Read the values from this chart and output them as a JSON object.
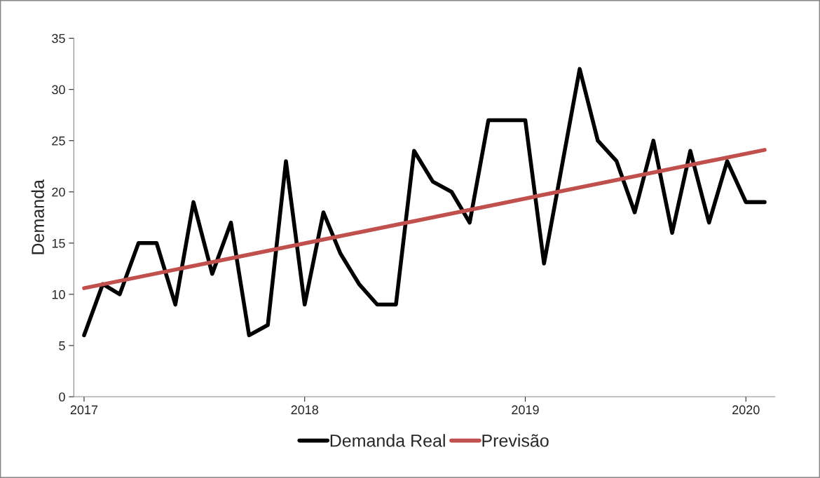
{
  "chart_data": {
    "type": "line",
    "ylabel": "Demanda",
    "x": [
      "2017-01",
      "2017-02",
      "2017-03",
      "2017-04",
      "2017-05",
      "2017-06",
      "2017-07",
      "2017-08",
      "2017-09",
      "2017-10",
      "2017-11",
      "2017-12",
      "2018-01",
      "2018-02",
      "2018-03",
      "2018-04",
      "2018-05",
      "2018-06",
      "2018-07",
      "2018-08",
      "2018-09",
      "2018-10",
      "2018-11",
      "2018-12",
      "2019-01",
      "2019-02",
      "2019-03",
      "2019-04",
      "2019-05",
      "2019-06",
      "2019-07",
      "2019-08",
      "2019-09",
      "2019-10",
      "2019-11",
      "2019-12",
      "2020-01",
      "2020-02"
    ],
    "series": [
      {
        "name": "Demanda Real",
        "color": "#000000",
        "values": [
          6,
          11,
          10,
          15,
          15,
          9,
          19,
          12,
          17,
          6,
          7,
          23,
          9,
          18,
          14,
          11,
          9,
          9,
          24,
          21,
          20,
          17,
          27,
          27,
          27,
          13,
          22,
          32,
          25,
          23,
          18,
          25,
          16,
          24,
          17,
          23,
          19,
          19
        ]
      },
      {
        "name": "Previsão",
        "color": "#c0504d",
        "x": [
          "2017-01",
          "2020-02"
        ],
        "values": [
          10.6,
          24.1
        ]
      }
    ],
    "xlim": [
      "2016-12-15",
      "2020-02-18"
    ],
    "xticks": [
      {
        "value": "2017-01-01",
        "label": "2017"
      },
      {
        "value": "2018-01-01",
        "label": "2018"
      },
      {
        "value": "2019-01-01",
        "label": "2019"
      },
      {
        "value": "2020-01-01",
        "label": "2020"
      }
    ],
    "ylim": [
      0,
      35
    ],
    "yticks": [
      0,
      5,
      10,
      15,
      20,
      25,
      30,
      35
    ],
    "grid": false,
    "legend": "bottom",
    "marker": "none",
    "line_style": "solid"
  }
}
